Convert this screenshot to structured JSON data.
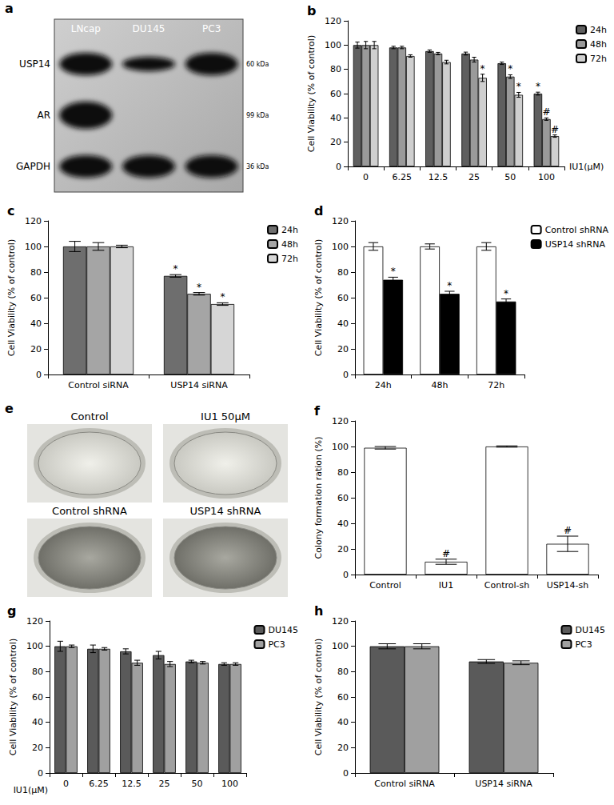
{
  "blot": {
    "title": "a",
    "lanes": [
      "LNcap",
      "DU145",
      "PC3"
    ],
    "rows": [
      {
        "label": "USP14",
        "size": "60 kDa",
        "bands": [
          true,
          true,
          true
        ]
      },
      {
        "label": "AR",
        "size": "99 kDa",
        "bands": [
          true,
          false,
          false
        ]
      },
      {
        "label": "GAPDH",
        "size": "36 kDa",
        "bands": [
          true,
          true,
          true
        ]
      }
    ]
  },
  "plates": {
    "title": "e",
    "labels": [
      "Control",
      "IU1 50μM",
      "Control shRNA",
      "USP14 shRNA"
    ]
  },
  "chart_data": [
    {
      "title": "b",
      "type": "bar",
      "categories": [
        "0",
        "6.25",
        "12.5",
        "25",
        "50",
        "100"
      ],
      "xlabel": "IU1(μM)",
      "ylabel": "Cell Viability (% of control)",
      "ylim": [
        0,
        120
      ],
      "yticks": [
        0,
        20,
        40,
        60,
        80,
        100,
        120
      ],
      "grid": false,
      "legend": "top right",
      "series": [
        {
          "name": "24h",
          "color": "#5f5f5f",
          "values": [
            100,
            98,
            95,
            93,
            85,
            60
          ],
          "errors": [
            2.5,
            1,
            1,
            1.2,
            1,
            1.2
          ],
          "significance": [
            null,
            null,
            null,
            null,
            null,
            "*"
          ]
        },
        {
          "name": "48h",
          "color": "#9a9a9a",
          "values": [
            100,
            98,
            93,
            88,
            74,
            39
          ],
          "errors": [
            3,
            1,
            1,
            2,
            1.5,
            1
          ],
          "significance": [
            null,
            null,
            null,
            null,
            "*",
            "#"
          ]
        },
        {
          "name": "72h",
          "color": "#cfcfcf",
          "values": [
            100,
            91,
            86,
            73,
            59,
            25
          ],
          "errors": [
            3,
            1,
            1.5,
            3,
            2,
            1
          ],
          "significance": [
            null,
            null,
            null,
            "*",
            "*",
            "#"
          ]
        }
      ]
    },
    {
      "title": "c",
      "type": "bar",
      "categories": [
        "Control siRNA",
        "USP14 siRNA"
      ],
      "ylabel": "Cell Viability (% of control)",
      "ylim": [
        0,
        120
      ],
      "yticks": [
        0,
        20,
        40,
        60,
        80,
        100,
        120
      ],
      "grid": false,
      "legend": "top right",
      "series": [
        {
          "name": "24h",
          "color": "#6e6e6e",
          "values": [
            100,
            77
          ],
          "errors": [
            4,
            1
          ],
          "significance": [
            null,
            "*"
          ]
        },
        {
          "name": "48h",
          "color": "#a5a5a5",
          "values": [
            100,
            63
          ],
          "errors": [
            3,
            1
          ],
          "significance": [
            null,
            "*"
          ]
        },
        {
          "name": "72h",
          "color": "#d6d6d6",
          "values": [
            100,
            55
          ],
          "errors": [
            1,
            1
          ],
          "significance": [
            null,
            "*"
          ]
        }
      ]
    },
    {
      "title": "d",
      "type": "bar",
      "categories": [
        "24h",
        "48h",
        "72h"
      ],
      "ylabel": "Cell Viability (% of control)",
      "ylim": [
        0,
        120
      ],
      "yticks": [
        0,
        20,
        40,
        60,
        80,
        100,
        120
      ],
      "grid": false,
      "legend": "top right",
      "series": [
        {
          "name": "Control shRNA",
          "color": "#ffffff",
          "values": [
            100,
            100,
            100
          ],
          "errors": [
            3,
            2,
            3
          ],
          "significance": [
            null,
            null,
            null
          ]
        },
        {
          "name": "USP14 shRNA",
          "color": "#000000",
          "values": [
            74,
            63,
            57
          ],
          "errors": [
            2,
            2,
            2
          ],
          "significance": [
            "*",
            "*",
            "*"
          ]
        }
      ]
    },
    {
      "title": "f",
      "type": "bar",
      "categories": [
        "Control",
        "IU1",
        "Control-sh",
        "USP14-sh"
      ],
      "ylabel": "Colony formation ration (%)",
      "ylim": [
        0,
        120
      ],
      "yticks": [
        0,
        20,
        40,
        60,
        80,
        100,
        120
      ],
      "grid": false,
      "color": "#ffffff",
      "values": [
        99,
        10,
        100,
        24
      ],
      "errors": [
        1,
        2,
        0.5,
        6
      ],
      "significance": [
        null,
        "#",
        null,
        "#"
      ]
    },
    {
      "title": "g",
      "type": "bar",
      "categories": [
        "0",
        "6.25",
        "12.5",
        "25",
        "50",
        "100"
      ],
      "xlabel": "IU1(μM)",
      "ylabel": "Cell Viability (% of control)",
      "ylim": [
        0,
        120
      ],
      "yticks": [
        0,
        20,
        40,
        60,
        80,
        100,
        120
      ],
      "grid": false,
      "legend": "top right",
      "series": [
        {
          "name": "DU145",
          "color": "#5a5a5a",
          "values": [
            100,
            98,
            96,
            93,
            88,
            86
          ],
          "errors": [
            4,
            3,
            2,
            3,
            1,
            1
          ]
        },
        {
          "name": "PC3",
          "color": "#a0a0a0",
          "values": [
            100,
            98,
            87,
            86,
            87,
            86
          ],
          "errors": [
            1,
            1,
            2,
            2,
            1,
            1
          ]
        }
      ]
    },
    {
      "title": "h",
      "type": "bar",
      "categories": [
        "Control siRNA",
        "USP14 siRNA"
      ],
      "ylabel": "Cell Viability (% of control)",
      "ylim": [
        0,
        120
      ],
      "yticks": [
        0,
        20,
        40,
        60,
        80,
        100,
        120
      ],
      "grid": false,
      "legend": "top right",
      "series": [
        {
          "name": "DU145",
          "color": "#5a5a5a",
          "values": [
            100,
            88
          ],
          "errors": [
            2,
            1.5
          ]
        },
        {
          "name": "PC3",
          "color": "#a0a0a0",
          "values": [
            100,
            87
          ],
          "errors": [
            2,
            1.5
          ]
        }
      ]
    }
  ]
}
